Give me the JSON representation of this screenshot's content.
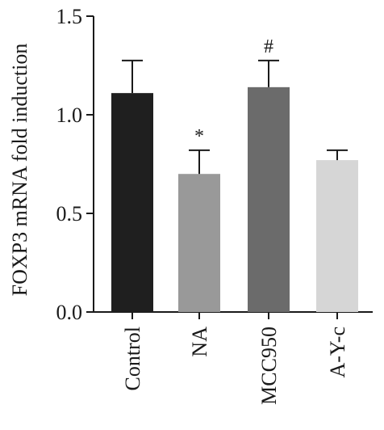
{
  "chart_data": {
    "type": "bar",
    "categories": [
      "Control",
      "NA",
      "MCC950",
      "A-Y-c"
    ],
    "values": [
      1.11,
      0.7,
      1.14,
      0.77
    ],
    "errors": [
      0.165,
      0.12,
      0.135,
      0.05
    ],
    "annotations": [
      "",
      "*",
      "#",
      ""
    ],
    "bar_colors": [
      "#1f1f1f",
      "#999999",
      "#6b6b6b",
      "#d6d6d6"
    ],
    "title": "",
    "xlabel": "",
    "ylabel": "FOXP3 mRNA fold induction",
    "ylim": [
      0,
      1.5
    ],
    "yticks": [
      "0.0",
      "0.5",
      "1.0",
      "1.5"
    ],
    "grid": false
  }
}
